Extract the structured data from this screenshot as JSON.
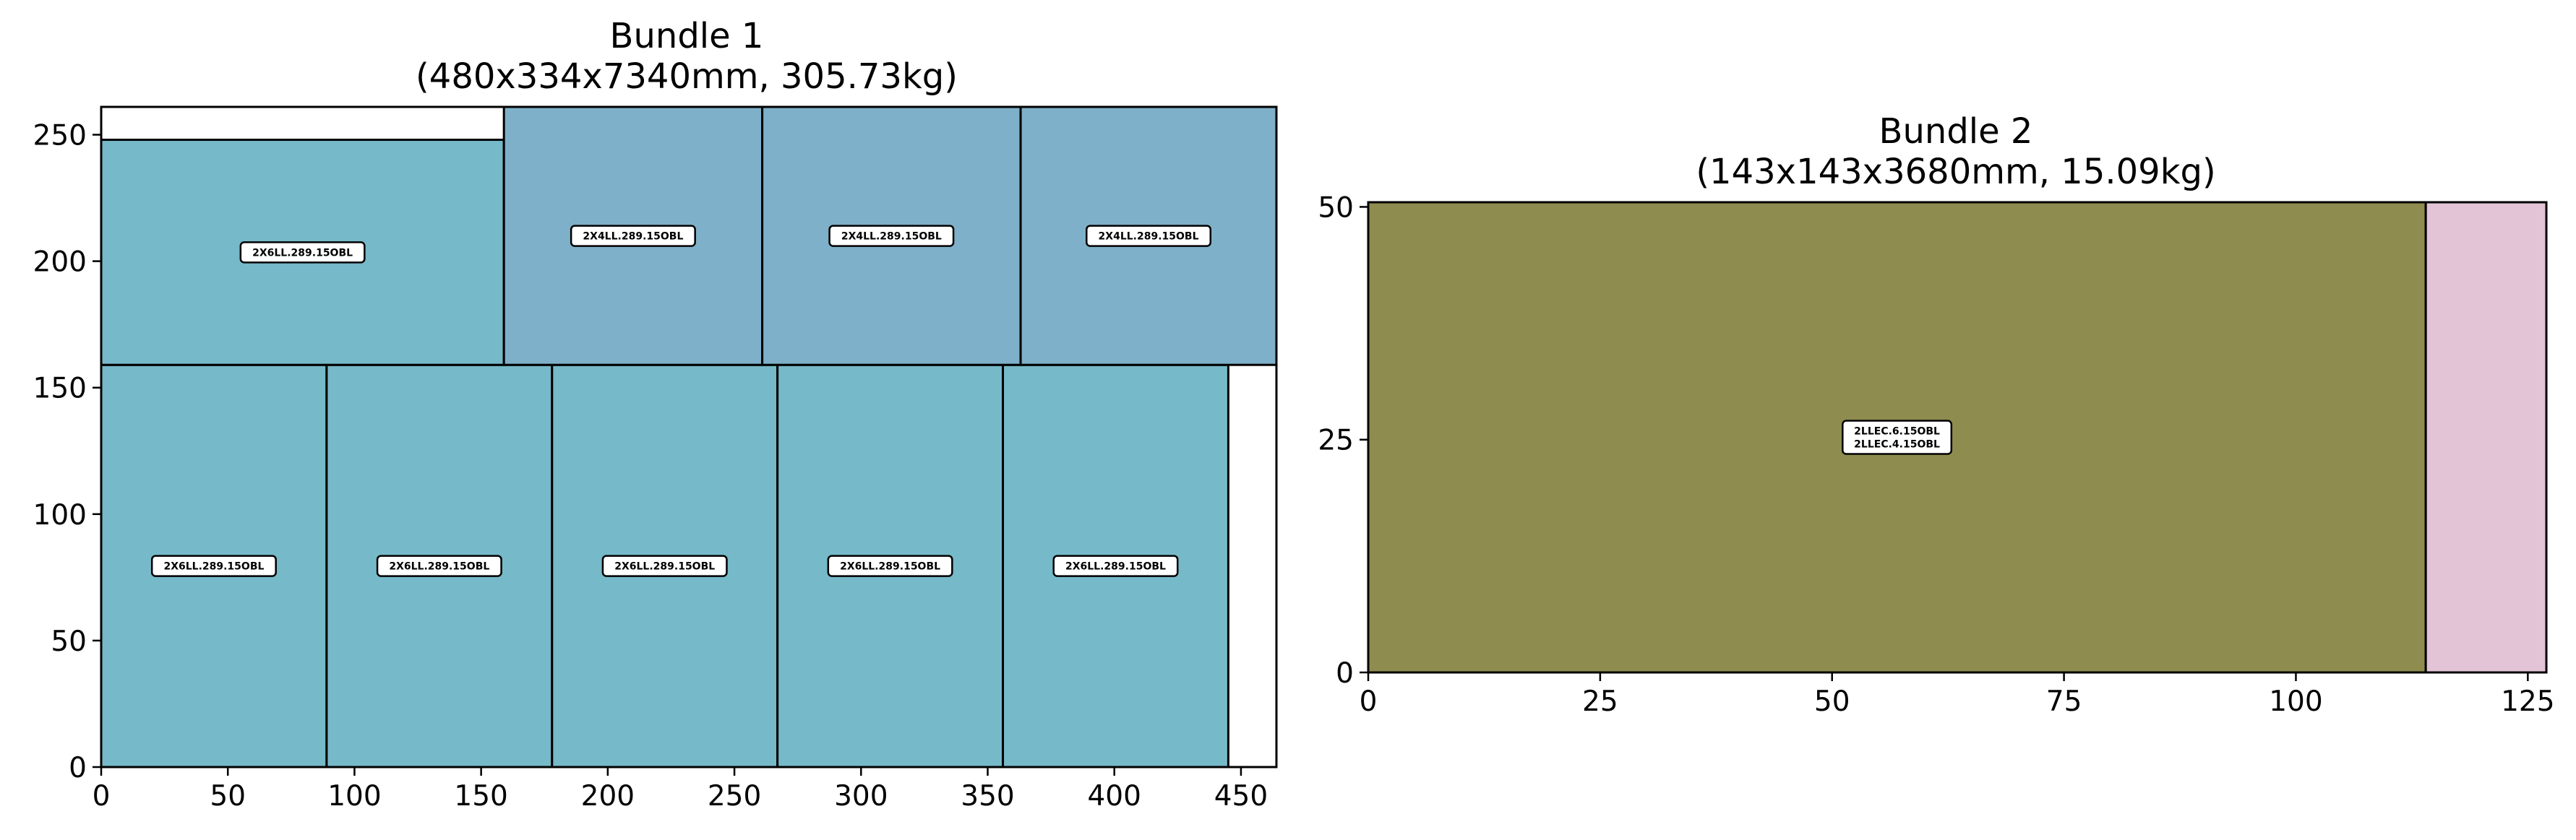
{
  "chart_data": [
    {
      "type": "bar",
      "title": "Bundle 1",
      "subtitle": "(480x334x7340mm, 305.73kg)",
      "xlabel": "",
      "ylabel": "",
      "xlim": [
        0,
        464
      ],
      "ylim": [
        0,
        261
      ],
      "xticks": [
        0,
        50,
        100,
        150,
        200,
        250,
        300,
        350,
        400,
        450
      ],
      "yticks": [
        0,
        50,
        100,
        150,
        200,
        250
      ],
      "grid": false,
      "rectangles": [
        {
          "x": 0,
          "y": 0,
          "w": 89,
          "h": 159,
          "color": "#76b9c9",
          "labels": [
            "2X6LL.289.15OBL"
          ]
        },
        {
          "x": 89,
          "y": 0,
          "w": 89,
          "h": 159,
          "color": "#76b9c9",
          "labels": [
            "2X6LL.289.15OBL"
          ]
        },
        {
          "x": 178,
          "y": 0,
          "w": 89,
          "h": 159,
          "color": "#76b9c9",
          "labels": [
            "2X6LL.289.15OBL"
          ]
        },
        {
          "x": 267,
          "y": 0,
          "w": 89,
          "h": 159,
          "color": "#76b9c9",
          "labels": [
            "2X6LL.289.15OBL"
          ]
        },
        {
          "x": 356,
          "y": 0,
          "w": 89,
          "h": 159,
          "color": "#76b9c9",
          "labels": [
            "2X6LL.289.15OBL"
          ]
        },
        {
          "x": 0,
          "y": 159,
          "w": 159,
          "h": 89,
          "color": "#76b9c9",
          "labels": [
            "2X6LL.289.15OBL"
          ]
        },
        {
          "x": 159,
          "y": 159,
          "w": 102,
          "h": 102,
          "color": "#7fb0c9",
          "labels": [
            "2X4LL.289.15OBL"
          ]
        },
        {
          "x": 261,
          "y": 159,
          "w": 102,
          "h": 102,
          "color": "#7fb0c9",
          "labels": [
            "2X4LL.289.15OBL"
          ]
        },
        {
          "x": 363,
          "y": 159,
          "w": 102,
          "h": 102,
          "color": "#7fb0c9",
          "labels": [
            "2X4LL.289.15OBL"
          ]
        }
      ]
    },
    {
      "type": "bar",
      "title": "Bundle 2",
      "subtitle": "(143x143x3680mm, 15.09kg)",
      "xlabel": "",
      "ylabel": "",
      "xlim": [
        0,
        127
      ],
      "ylim": [
        0,
        50.5
      ],
      "xticks": [
        0,
        25,
        50,
        75,
        100,
        125
      ],
      "yticks": [
        0,
        25,
        50
      ],
      "grid": false,
      "rectangles": [
        {
          "x": 0,
          "y": 0,
          "w": 114,
          "h": 50.5,
          "color": "#8e8c4f",
          "labels": [
            "2LLEC.6.15OBL",
            "2LLEC.4.15OBL"
          ]
        },
        {
          "x": 114,
          "y": 0,
          "w": 13,
          "h": 50.5,
          "color": "#e2c4d6",
          "labels": []
        }
      ]
    }
  ]
}
